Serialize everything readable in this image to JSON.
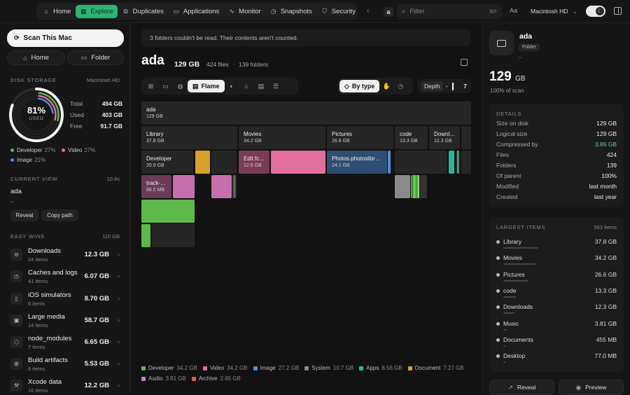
{
  "nav": {
    "items": [
      {
        "label": "Home",
        "icon": "house-icon",
        "glyph": "⌂"
      },
      {
        "label": "Explore",
        "icon": "grid-icon",
        "glyph": "▦"
      },
      {
        "label": "Duplicates",
        "icon": "copy-icon",
        "glyph": "⧉"
      },
      {
        "label": "Applications",
        "icon": "monitor-icon",
        "glyph": "▭"
      },
      {
        "label": "Monitor",
        "icon": "pulse-icon",
        "glyph": "∿"
      },
      {
        "label": "Snapshots",
        "icon": "clock-icon",
        "glyph": "◷"
      },
      {
        "label": "Security",
        "icon": "shield-icon",
        "glyph": "⛉"
      }
    ],
    "active": "Explore",
    "breadcrumb": "a",
    "filter_placeholder": "Filter",
    "filter_shortcut": "⌘F",
    "text_size_label": "Aa",
    "disk_select": "Macintosh HD"
  },
  "sidebar": {
    "scan_label": "Scan This Mac",
    "home_label": "Home",
    "folder_label": "Folder",
    "disk_storage_heading": "DISK STORAGE",
    "disk_name": "Macintosh HD",
    "used_pct_text": "81%",
    "used_caption": "USED",
    "used_fraction": 0.81,
    "stats": [
      {
        "key": "Total",
        "value": "494 GB"
      },
      {
        "key": "Used",
        "value": "403 GB"
      },
      {
        "key": "Free",
        "value": "91.7 GB"
      }
    ],
    "breakdown": [
      {
        "name": "Developer",
        "pct": "27%",
        "color": "#5fb84a"
      },
      {
        "name": "Video",
        "pct": "27%",
        "color": "#e06fa0"
      },
      {
        "name": "Image",
        "pct": "21%",
        "color": "#4f8fd6"
      }
    ],
    "current_view_heading": "CURRENT VIEW",
    "current_view_time": "10.8s",
    "current_view_name": "ada",
    "current_view_path": "~",
    "reveal_label": "Reveal",
    "copy_path_label": "Copy path",
    "easy_wins_heading": "EASY WINS",
    "easy_wins_total": "110 GB",
    "easy_wins": [
      {
        "name": "Downloads",
        "count": "24 items",
        "size": "12.3 GB",
        "glyph": "⊖"
      },
      {
        "name": "Caches and logs",
        "count": "41 items",
        "size": "6.07 GB",
        "glyph": "◷"
      },
      {
        "name": "iOS simulators",
        "count": "6 items",
        "size": "8.70 GB",
        "glyph": "▯"
      },
      {
        "name": "Large media",
        "count": "14 items",
        "size": "58.7 GB",
        "glyph": "▣"
      },
      {
        "name": "node_modules",
        "count": "7 items",
        "size": "6.65 GB",
        "glyph": "⬡"
      },
      {
        "name": "Build artifacts",
        "count": "8 items",
        "size": "5.53 GB",
        "glyph": "⊞"
      },
      {
        "name": "Xcode data",
        "count": "16 items",
        "size": "12.2 GB",
        "glyph": "⚒"
      }
    ]
  },
  "main": {
    "banner": "3 folders couldn't be read. Their contents aren't counted.",
    "title": "ada",
    "size": "129 GB",
    "files": "424 files",
    "folders": "139 folders",
    "views": [
      "⊞",
      "▭",
      "◍"
    ],
    "views_after": [
      "◐",
      "⌂",
      "▤",
      "☰"
    ],
    "active_view": "Flame",
    "group_by": "By type",
    "depth_label": "Depth",
    "depth_value": "7",
    "flame": [
      {
        "name": "ada",
        "size": "129 GB",
        "color": "#262626"
      },
      {
        "name": "Library",
        "size": "37.8 GB",
        "color": "#262626"
      },
      {
        "name": "Movies",
        "size": "34.2 GB",
        "color": "#262626"
      },
      {
        "name": "Pictures",
        "size": "26.6 GB",
        "color": "#262626"
      },
      {
        "name": "code",
        "size": "13.3 GB",
        "color": "#262626"
      },
      {
        "name": "Downl…",
        "size": "12.3 GB",
        "color": "#262626"
      },
      {
        "name": "Developer",
        "size": "20.9 GB",
        "color": "#262626"
      },
      {
        "name": "Edit.fc…",
        "size": "12.6 GB",
        "color": "#7a3b57"
      },
      {
        "name": "Photos.photoslibr…",
        "size": "24.1 GB",
        "color": "#2f4e74"
      },
      {
        "name": "track-…",
        "size": "88.0 MB",
        "color": "#6a3a57"
      }
    ],
    "legend": [
      {
        "name": "Developer",
        "size": "34.2 GB",
        "color": "#5fb84a"
      },
      {
        "name": "Video",
        "size": "34.2 GB",
        "color": "#e06fa0"
      },
      {
        "name": "Image",
        "size": "27.2 GB",
        "color": "#4f8fd6"
      },
      {
        "name": "System",
        "size": "10.7 GB",
        "color": "#8a8a8a"
      },
      {
        "name": "Apps",
        "size": "8.56 GB",
        "color": "#2bb5a0"
      },
      {
        "name": "Document",
        "size": "7.27 GB",
        "color": "#d6a02a"
      },
      {
        "name": "Audio",
        "size": "3.81 GB",
        "color": "#c77fd9"
      },
      {
        "name": "Archive",
        "size": "2.65 GB",
        "color": "#d9683a"
      }
    ]
  },
  "detail": {
    "name": "ada",
    "kind": "Folder",
    "path": "~",
    "size_num": "129",
    "size_unit": "GB",
    "scan_share": "100% of scan",
    "details_heading": "DETAILS",
    "rows": [
      {
        "key": "Size on disk",
        "value": "129 GB"
      },
      {
        "key": "Logical size",
        "value": "129 GB"
      },
      {
        "key": "Compressed by",
        "value": "3.86 GB",
        "accent": "#5fcf86"
      },
      {
        "key": "Files",
        "value": "424"
      },
      {
        "key": "Folders",
        "value": "139"
      },
      {
        "key": "Of parent",
        "value": "100%"
      },
      {
        "key": "Modified",
        "value": "last month"
      },
      {
        "key": "Created",
        "value": "last year"
      }
    ],
    "largest_heading": "LARGEST ITEMS",
    "largest_count": "563 items",
    "largest": [
      {
        "name": "Library",
        "size": "37.8 GB",
        "fraction": 0.29
      },
      {
        "name": "Movies",
        "size": "34.2 GB",
        "fraction": 0.265
      },
      {
        "name": "Pictures",
        "size": "26.6 GB",
        "fraction": 0.206
      },
      {
        "name": "code",
        "size": "13.3 GB",
        "fraction": 0.103
      },
      {
        "name": "Downloads",
        "size": "12.3 GB",
        "fraction": 0.095
      },
      {
        "name": "Music",
        "size": "3.81 GB",
        "fraction": 0.03
      },
      {
        "name": "Documents",
        "size": "455 MB",
        "fraction": 0.01
      },
      {
        "name": "Desktop",
        "size": "77.0 MB",
        "fraction": 0.005
      }
    ],
    "reveal_label": "Reveal",
    "preview_label": "Preview"
  }
}
